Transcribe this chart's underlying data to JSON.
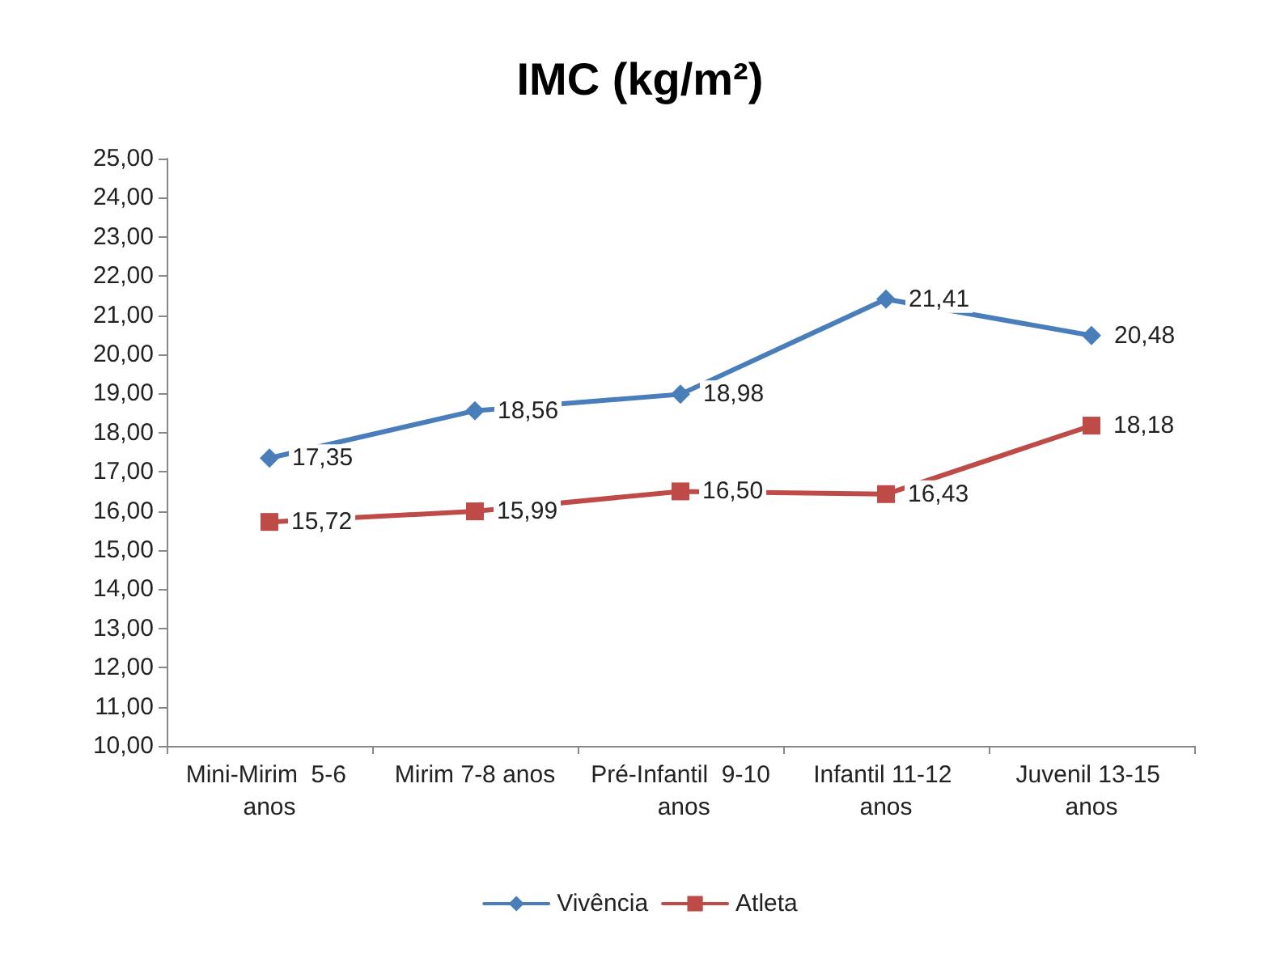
{
  "chart_data": {
    "type": "line",
    "title": "IMC (kg/m²)",
    "categories": [
      "Mini-Mirim  5-6 anos",
      "Mirim 7-8 anos",
      "Pré-Infantil  9-10 anos",
      "Infantil 11-12 anos",
      "Juvenil 13-15 anos"
    ],
    "series": [
      {
        "name": "Vivência",
        "color": "#4a7ebb",
        "marker": "diamond",
        "values": [
          17.35,
          18.56,
          18.98,
          21.41,
          20.48
        ],
        "value_labels": [
          "17,35",
          "18,56",
          "18,98",
          "21,41",
          "20,48"
        ]
      },
      {
        "name": "Atleta",
        "color": "#be4b48",
        "marker": "square",
        "values": [
          15.72,
          15.99,
          16.5,
          16.43,
          18.18
        ],
        "value_labels": [
          "15,72",
          "15,99",
          "16,50",
          "16,43",
          "18,18"
        ]
      }
    ],
    "ylim": [
      10,
      25
    ],
    "yticks": [
      {
        "value": 10,
        "label": "10,00"
      },
      {
        "value": 11,
        "label": "11,00"
      },
      {
        "value": 12,
        "label": "12,00"
      },
      {
        "value": 13,
        "label": "13,00"
      },
      {
        "value": 14,
        "label": "14,00"
      },
      {
        "value": 15,
        "label": "15,00"
      },
      {
        "value": 16,
        "label": "16,00"
      },
      {
        "value": 17,
        "label": "17,00"
      },
      {
        "value": 18,
        "label": "18,00"
      },
      {
        "value": 19,
        "label": "19,00"
      },
      {
        "value": 20,
        "label": "20,00"
      },
      {
        "value": 21,
        "label": "21,00"
      },
      {
        "value": 22,
        "label": "22,00"
      },
      {
        "value": 23,
        "label": "23,00"
      },
      {
        "value": 24,
        "label": "24,00"
      },
      {
        "value": 25,
        "label": "25,00"
      }
    ],
    "grid": false,
    "legend": "bottom",
    "line_style": "solid"
  }
}
